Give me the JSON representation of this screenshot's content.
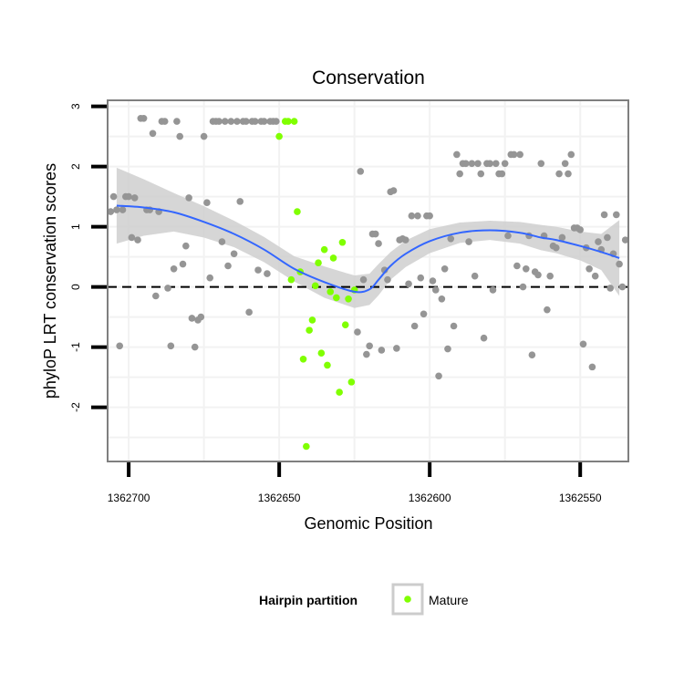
{
  "chart_data": {
    "type": "scatter",
    "title": "Conservation",
    "xlabel": "Genomic Position",
    "ylabel": "phyloP LRT conservation scores",
    "x_reversed": true,
    "xlim": [
      1362707,
      1362534
    ],
    "ylim": [
      -2.9,
      3.1
    ],
    "x_ticks": [
      1362700,
      1362650,
      1362600,
      1362550
    ],
    "x_tick_labels": [
      "1362700",
      "1362650",
      "1362600",
      "1362550"
    ],
    "y_ticks": [
      -2,
      -1,
      0,
      1,
      2,
      3
    ],
    "y_tick_labels": [
      "-2",
      "-1",
      "0",
      "1",
      "2",
      "3"
    ],
    "grid": true,
    "reference_line": {
      "y": 0,
      "style": "dashed",
      "color": "#000000"
    },
    "legend": {
      "title": "Hairpin partition",
      "position": "bottom",
      "entries": [
        {
          "label": "Mature",
          "color": "#80ff00"
        }
      ]
    },
    "colors": {
      "other_points": "#959595",
      "mature_points": "#80ff00",
      "smooth_line": "#3366ff",
      "ribbon": "#cccccc",
      "panel_border": "#7f7f7f",
      "grid": "#f2f2f2"
    },
    "series": [
      {
        "name": "Mature",
        "color": "#80ff00",
        "x": [
          1362650,
          1362648,
          1362647,
          1362646,
          1362645,
          1362644,
          1362643,
          1362642,
          1362641,
          1362640,
          1362639,
          1362638,
          1362637,
          1362636,
          1362635,
          1362634,
          1362633,
          1362632,
          1362631,
          1362630,
          1362629,
          1362628,
          1362627,
          1362626,
          1362625
        ],
        "y": [
          2.5,
          2.75,
          2.75,
          0.12,
          2.75,
          1.25,
          0.25,
          -1.2,
          -2.65,
          -0.72,
          -0.55,
          0.02,
          0.4,
          -1.1,
          0.62,
          -1.3,
          -0.08,
          0.48,
          -0.18,
          -1.75,
          0.74,
          -0.63,
          -0.2,
          -1.58,
          -0.05
        ]
      },
      {
        "name": "",
        "color": "#959595",
        "x": [
          1362706,
          1362705,
          1362704,
          1362703,
          1362702,
          1362701,
          1362700,
          1362699,
          1362698,
          1362697,
          1362696,
          1362695,
          1362694,
          1362693,
          1362692,
          1362691,
          1362690,
          1362689,
          1362688,
          1362687,
          1362686,
          1362685,
          1362684,
          1362683,
          1362682,
          1362681,
          1362680,
          1362679,
          1362678,
          1362677,
          1362676,
          1362675,
          1362674,
          1362673,
          1362672,
          1362671,
          1362670,
          1362669,
          1362668,
          1362667,
          1362666,
          1362665,
          1362664,
          1362663,
          1362662,
          1362661,
          1362660,
          1362659,
          1362658,
          1362657,
          1362656,
          1362655,
          1362654,
          1362653,
          1362652,
          1362651,
          1362624,
          1362623,
          1362622,
          1362621,
          1362620,
          1362619,
          1362618,
          1362617,
          1362616,
          1362615,
          1362614,
          1362613,
          1362612,
          1362611,
          1362610,
          1362609,
          1362608,
          1362607,
          1362606,
          1362605,
          1362604,
          1362603,
          1362602,
          1362601,
          1362600,
          1362599,
          1362598,
          1362597,
          1362596,
          1362595,
          1362594,
          1362593,
          1362592,
          1362591,
          1362590,
          1362589,
          1362588,
          1362587,
          1362586,
          1362585,
          1362584,
          1362583,
          1362582,
          1362581,
          1362580,
          1362579,
          1362578,
          1362577,
          1362576,
          1362575,
          1362574,
          1362573,
          1362572,
          1362571,
          1362570,
          1362569,
          1362568,
          1362567,
          1362566,
          1362565,
          1362564,
          1362563,
          1362562,
          1362561,
          1362560,
          1362559,
          1362558,
          1362557,
          1362556,
          1362555,
          1362554,
          1362553,
          1362552,
          1362551,
          1362550,
          1362549,
          1362548,
          1362547,
          1362546,
          1362545,
          1362544,
          1362543,
          1362542,
          1362541,
          1362540,
          1362539,
          1362538,
          1362537,
          1362536,
          1362535
        ],
        "y": [
          1.25,
          1.5,
          1.28,
          -0.98,
          1.28,
          1.5,
          1.5,
          0.82,
          1.48,
          0.78,
          2.8,
          2.8,
          1.28,
          1.28,
          2.55,
          -0.15,
          1.25,
          2.75,
          2.75,
          -0.02,
          -0.98,
          0.3,
          2.75,
          2.5,
          0.38,
          0.68,
          1.48,
          -0.52,
          -1.0,
          -0.55,
          -0.5,
          2.5,
          1.4,
          0.15,
          2.75,
          2.75,
          2.75,
          0.75,
          2.75,
          0.35,
          2.75,
          0.55,
          2.75,
          1.42,
          2.75,
          2.75,
          -0.42,
          2.75,
          2.75,
          0.28,
          2.75,
          2.75,
          0.22,
          2.75,
          2.75,
          2.75,
          -0.75,
          1.92,
          0.12,
          -1.12,
          -0.98,
          0.88,
          0.88,
          0.72,
          -1.05,
          0.28,
          0.12,
          1.58,
          1.6,
          -1.02,
          0.78,
          0.8,
          0.78,
          0.05,
          1.18,
          -0.65,
          1.18,
          0.15,
          -0.45,
          1.18,
          1.18,
          0.1,
          -0.05,
          -1.48,
          -0.2,
          0.3,
          -1.03,
          0.8,
          -0.65,
          2.2,
          1.88,
          2.05,
          2.05,
          0.75,
          2.05,
          0.18,
          2.05,
          1.88,
          -0.85,
          2.05,
          2.05,
          -0.05,
          2.05,
          1.88,
          1.88,
          2.05,
          0.85,
          2.2,
          2.2,
          0.35,
          2.2,
          0.0,
          0.3,
          0.85,
          -1.13,
          0.25,
          0.2,
          2.05,
          0.85,
          -0.38,
          0.18,
          0.68,
          0.65,
          1.88,
          0.82,
          2.05,
          1.88,
          2.2,
          0.98,
          0.98,
          0.95,
          -0.95,
          0.65,
          0.3,
          -1.33,
          0.18,
          0.75,
          0.62,
          1.2,
          0.82,
          -0.02,
          0.55,
          1.2,
          0.38,
          0.0,
          0.78
        ]
      }
    ],
    "smooth": {
      "x": [
        1362704,
        1362695,
        1362685,
        1362675,
        1362665,
        1362655,
        1362645,
        1362635,
        1362625,
        1362620,
        1362617,
        1362613,
        1362608,
        1362600,
        1362590,
        1362580,
        1362570,
        1362563,
        1362558,
        1362550,
        1362543,
        1362537
      ],
      "y": [
        1.35,
        1.32,
        1.24,
        1.08,
        0.88,
        0.62,
        0.3,
        0.08,
        -0.08,
        -0.04,
        0.12,
        0.35,
        0.55,
        0.76,
        0.9,
        0.94,
        0.9,
        0.82,
        0.78,
        0.68,
        0.58,
        0.48
      ],
      "ymin": [
        0.72,
        0.85,
        0.92,
        0.82,
        0.66,
        0.41,
        0.09,
        -0.18,
        -0.35,
        -0.3,
        -0.14,
        0.12,
        0.33,
        0.56,
        0.73,
        0.78,
        0.72,
        0.61,
        0.56,
        0.44,
        0.28,
        -0.15
      ],
      "ymax": [
        1.98,
        1.79,
        1.56,
        1.34,
        1.1,
        0.83,
        0.51,
        0.34,
        0.19,
        0.22,
        0.38,
        0.58,
        0.77,
        0.96,
        1.07,
        1.1,
        1.08,
        1.03,
        1.0,
        0.92,
        0.88,
        1.11
      ]
    }
  }
}
